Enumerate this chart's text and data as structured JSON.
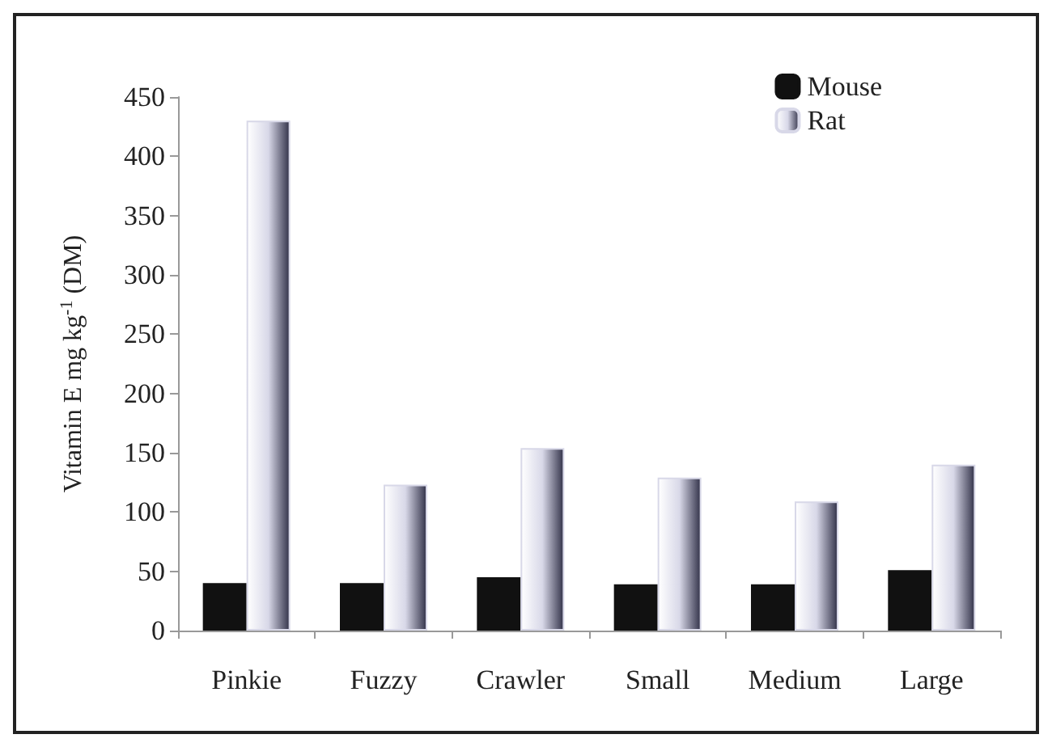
{
  "chart_data": {
    "type": "bar",
    "ylabel": "Vitamin E mg kg$^{-1}$ (DM)",
    "categories": [
      "Pinkie",
      "Fuzzy",
      "Crawler",
      "Small",
      "Medium",
      "Large"
    ],
    "series": [
      {
        "name": "Mouse",
        "color": "#111111",
        "values": [
          40,
          40,
          45,
          39,
          39,
          51
        ]
      },
      {
        "name": "Rat",
        "color": "#d8d8e8",
        "values": [
          430,
          123,
          154,
          129,
          109,
          140
        ]
      }
    ],
    "ylim": [
      0,
      450
    ],
    "yticks": [
      0,
      50,
      100,
      150,
      200,
      250,
      300,
      350,
      400,
      450
    ],
    "grid": false,
    "legend": "top right"
  }
}
